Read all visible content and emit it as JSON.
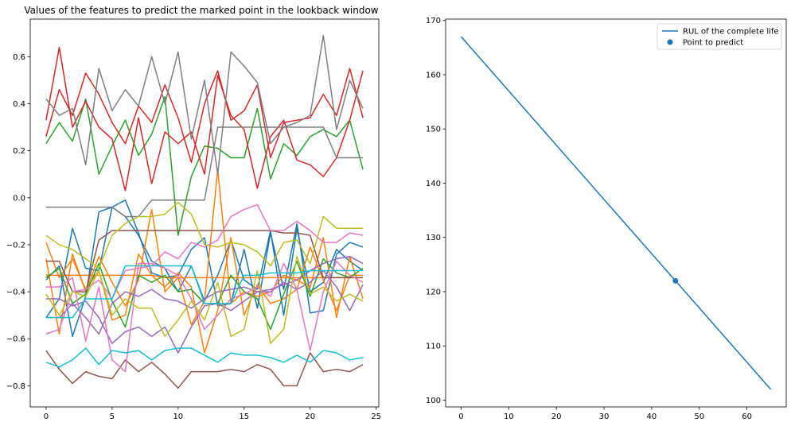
{
  "chart_data": [
    {
      "type": "line",
      "title": "Values of the features to predict the marked point in the lookback window",
      "xlabel": "",
      "ylabel": "",
      "xlim": [
        -1.2,
        25.2
      ],
      "ylim": [
        -0.89,
        0.76
      ],
      "xticks": [
        0,
        5,
        10,
        15,
        20,
        25
      ],
      "yticks": [
        -0.8,
        -0.6,
        -0.4,
        -0.2,
        0.0,
        0.2,
        0.4,
        0.6
      ],
      "ytick_labels": [
        "−0.8",
        "−0.6",
        "−0.4",
        "−0.2",
        "0.0",
        "0.2",
        "0.4",
        "0.6"
      ],
      "x": [
        0,
        1,
        2,
        3,
        4,
        5,
        6,
        7,
        8,
        9,
        10,
        11,
        12,
        13,
        14,
        15,
        16,
        17,
        18,
        19,
        20,
        21,
        22,
        23,
        24
      ],
      "series": [
        {
          "color": "#1f77b4",
          "values": [
            -0.35,
            -0.29,
            -0.59,
            -0.42,
            -0.06,
            -0.04,
            -0.01,
            -0.15,
            -0.32,
            -0.34,
            -0.33,
            -0.22,
            -0.17,
            -0.46,
            -0.45,
            -0.22,
            -0.47,
            -0.15,
            -0.39,
            -0.11,
            -0.49,
            -0.48,
            -0.24,
            -0.19,
            -0.21
          ]
        },
        {
          "color": "#1f77b4",
          "values": [
            -0.51,
            -0.43,
            -0.13,
            -0.3,
            -0.31,
            -0.04,
            -0.08,
            -0.16,
            -0.27,
            -0.3,
            -0.4,
            -0.29,
            -0.44,
            -0.33,
            -0.18,
            -0.35,
            -0.39,
            -0.14,
            -0.5,
            -0.13,
            -0.4,
            -0.36,
            -0.22,
            -0.27,
            -0.31
          ]
        },
        {
          "color": "#ff7f0e",
          "values": [
            -0.26,
            -0.58,
            -0.24,
            -0.4,
            -0.25,
            -0.36,
            -0.46,
            -0.35,
            -0.05,
            -0.4,
            -0.34,
            -0.54,
            -0.44,
            0.12,
            -0.45,
            -0.4,
            -0.42,
            -0.4,
            -0.33,
            -0.35,
            -0.38,
            -0.17,
            -0.51,
            -0.25,
            -0.43
          ]
        },
        {
          "color": "#ff7f0e",
          "values": [
            -0.19,
            -0.34,
            -0.26,
            -0.39,
            -0.31,
            -0.52,
            -0.5,
            -0.24,
            -0.33,
            -0.38,
            -0.32,
            -0.38,
            -0.66,
            -0.48,
            -0.17,
            -0.5,
            -0.37,
            -0.45,
            -0.43,
            -0.39,
            -0.21,
            -0.35,
            -0.48,
            -0.33,
            -0.33
          ]
        },
        {
          "color": "#ff7f0e",
          "values": [
            -0.33,
            -0.33,
            -0.33,
            -0.33,
            -0.33,
            -0.33,
            -0.33,
            -0.33,
            -0.33,
            -0.34,
            -0.34,
            -0.34,
            -0.34,
            -0.34,
            -0.34,
            -0.34,
            -0.34,
            -0.34,
            -0.34,
            -0.34,
            -0.34,
            -0.34,
            -0.34,
            -0.34,
            -0.34
          ]
        },
        {
          "color": "#2ca02c",
          "values": [
            0.23,
            0.32,
            0.24,
            0.42,
            0.1,
            0.22,
            0.33,
            0.18,
            0.27,
            0.43,
            -0.16,
            0.09,
            0.22,
            0.21,
            0.17,
            0.17,
            0.38,
            0.08,
            0.23,
            0.18,
            0.26,
            0.29,
            0.26,
            0.33,
            0.12
          ]
        },
        {
          "color": "#2ca02c",
          "values": [
            -0.34,
            -0.3,
            -0.45,
            -0.41,
            -0.28,
            -0.44,
            -0.55,
            -0.33,
            -0.36,
            -0.33,
            -0.4,
            -0.39,
            -0.45,
            -0.45,
            -0.33,
            -0.4,
            -0.43,
            -0.56,
            -0.41,
            -0.27,
            -0.42,
            -0.26,
            -0.32,
            -0.34,
            -0.3
          ]
        },
        {
          "color": "#d62728",
          "values": [
            0.26,
            0.46,
            0.35,
            0.53,
            0.44,
            0.32,
            0.23,
            0.39,
            0.32,
            0.48,
            0.34,
            0.15,
            0.4,
            0.54,
            0.33,
            0.37,
            0.48,
            0.17,
            0.32,
            0.33,
            0.34,
            0.44,
            0.35,
            0.55,
            0.34
          ]
        },
        {
          "color": "#d62728",
          "values": [
            0.33,
            0.64,
            0.3,
            0.41,
            0.3,
            0.25,
            0.03,
            0.34,
            0.06,
            0.28,
            0.23,
            0.28,
            0.1,
            0.52,
            0.35,
            0.29,
            0.04,
            0.26,
            0.33,
            0.16,
            0.14,
            0.09,
            0.17,
            0.33,
            0.54
          ]
        },
        {
          "color": "#9467bd",
          "values": [
            -0.43,
            -0.43,
            -0.46,
            -0.44,
            -0.51,
            -0.62,
            -0.57,
            -0.55,
            -0.59,
            -0.55,
            -0.66,
            -0.55,
            -0.46,
            -0.45,
            -0.48,
            -0.44,
            -0.4,
            -0.4,
            -0.36,
            -0.39,
            -0.36,
            -0.31,
            -0.38,
            -0.48,
            -0.37
          ]
        },
        {
          "color": "#9467bd",
          "values": [
            -0.51,
            -0.51,
            -0.45,
            -0.51,
            -0.58,
            -0.45,
            -0.4,
            -0.42,
            -0.39,
            -0.43,
            -0.44,
            -0.47,
            -0.43,
            -0.4,
            -0.39,
            -0.38,
            -0.4,
            -0.39,
            -0.37,
            -0.35,
            -0.31,
            -0.28,
            -0.26,
            -0.25,
            -0.28
          ]
        },
        {
          "color": "#8c564b",
          "values": [
            -0.65,
            -0.73,
            -0.79,
            -0.74,
            -0.76,
            -0.77,
            -0.69,
            -0.74,
            -0.7,
            -0.75,
            -0.81,
            -0.74,
            -0.74,
            -0.74,
            -0.73,
            -0.74,
            -0.71,
            -0.73,
            -0.8,
            -0.8,
            -0.66,
            -0.74,
            -0.73,
            -0.74,
            -0.71
          ]
        },
        {
          "color": "#8c564b",
          "values": [
            -0.27,
            -0.27,
            -0.4,
            -0.4,
            -0.18,
            -0.14,
            -0.14,
            -0.14,
            -0.14,
            -0.14,
            -0.14,
            -0.14,
            -0.14,
            -0.14,
            -0.14,
            -0.14,
            -0.14,
            -0.14,
            -0.15,
            -0.15,
            -0.16,
            -0.34,
            -0.34,
            -0.34,
            -0.34
          ]
        },
        {
          "color": "#e377c2",
          "values": [
            -0.58,
            -0.56,
            -0.4,
            -0.39,
            -0.35,
            -0.43,
            -0.31,
            -0.3,
            -0.29,
            -0.23,
            -0.26,
            -0.19,
            -0.21,
            -0.18,
            -0.08,
            -0.05,
            -0.03,
            -0.14,
            -0.14,
            -0.1,
            -0.14,
            -0.19,
            -0.19,
            -0.15,
            -0.16
          ]
        },
        {
          "color": "#e377c2",
          "values": [
            -0.38,
            -0.38,
            -0.34,
            -0.61,
            -0.38,
            -0.69,
            -0.74,
            -0.28,
            -0.28,
            -0.3,
            -0.33,
            -0.43,
            -0.56,
            -0.5,
            -0.43,
            -0.41,
            -0.38,
            -0.42,
            -0.28,
            -0.39,
            -0.65,
            -0.4,
            -0.27,
            -0.33,
            -0.36
          ]
        },
        {
          "color": "#7f7f7f",
          "values": [
            0.42,
            0.35,
            0.38,
            0.14,
            0.55,
            0.37,
            0.46,
            0.39,
            0.6,
            0.4,
            0.62,
            0.25,
            0.5,
            0.1,
            0.62,
            0.56,
            0.49,
            0.23,
            0.3,
            0.32,
            0.35,
            0.69,
            0.29,
            0.5,
            0.38
          ]
        },
        {
          "color": "#7f7f7f",
          "values": [
            -0.04,
            -0.04,
            -0.04,
            -0.04,
            -0.04,
            -0.04,
            -0.08,
            -0.08,
            -0.01,
            -0.01,
            -0.01,
            -0.01,
            -0.01,
            0.3,
            0.3,
            0.3,
            0.3,
            0.3,
            0.3,
            0.3,
            0.3,
            0.3,
            0.17,
            0.17,
            0.17
          ]
        },
        {
          "color": "#bcbd22",
          "values": [
            -0.16,
            -0.2,
            -0.22,
            -0.26,
            -0.3,
            -0.16,
            -0.11,
            -0.08,
            -0.08,
            -0.07,
            -0.02,
            -0.07,
            -0.2,
            -0.21,
            -0.19,
            -0.2,
            -0.23,
            -0.29,
            -0.19,
            -0.18,
            -0.28,
            -0.08,
            -0.13,
            -0.13,
            -0.13
          ]
        },
        {
          "color": "#bcbd22",
          "values": [
            -0.41,
            -0.5,
            -0.4,
            -0.42,
            -0.31,
            -0.5,
            -0.43,
            -0.47,
            -0.47,
            -0.59,
            -0.52,
            -0.44,
            -0.52,
            -0.36,
            -0.59,
            -0.56,
            -0.31,
            -0.62,
            -0.56,
            -0.25,
            -0.41,
            -0.38,
            -0.44,
            -0.41,
            -0.44
          ]
        },
        {
          "color": "#17becf",
          "values": [
            -0.7,
            -0.72,
            -0.69,
            -0.64,
            -0.71,
            -0.65,
            -0.66,
            -0.65,
            -0.69,
            -0.65,
            -0.64,
            -0.64,
            -0.67,
            -0.7,
            -0.66,
            -0.67,
            -0.67,
            -0.68,
            -0.7,
            -0.67,
            -0.7,
            -0.65,
            -0.66,
            -0.69,
            -0.68
          ]
        },
        {
          "color": "#17becf",
          "values": [
            -0.51,
            -0.51,
            -0.51,
            -0.43,
            -0.43,
            -0.43,
            -0.29,
            -0.29,
            -0.29,
            -0.29,
            -0.29,
            -0.29,
            -0.45,
            -0.45,
            -0.45,
            -0.33,
            -0.33,
            -0.32,
            -0.32,
            -0.32,
            -0.31,
            -0.31,
            -0.31,
            -0.31,
            -0.31
          ]
        }
      ]
    },
    {
      "type": "line",
      "title": "",
      "xlabel": "",
      "ylabel": "",
      "xlim": [
        -3.25,
        68.25
      ],
      "ylim": [
        98.75,
        170.25
      ],
      "xticks": [
        0,
        10,
        20,
        30,
        40,
        50,
        60
      ],
      "yticks": [
        100,
        110,
        120,
        130,
        140,
        150,
        160,
        170
      ],
      "legend_position": "top-right",
      "series": [
        {
          "name": "RUL of the complete life",
          "color": "#1f77b4",
          "x": [
            0,
            65
          ],
          "values": [
            167,
            102
          ]
        }
      ],
      "points": [
        {
          "name": "Point to predict",
          "color": "#1f77b4",
          "x": 45,
          "y": 122
        }
      ]
    }
  ]
}
